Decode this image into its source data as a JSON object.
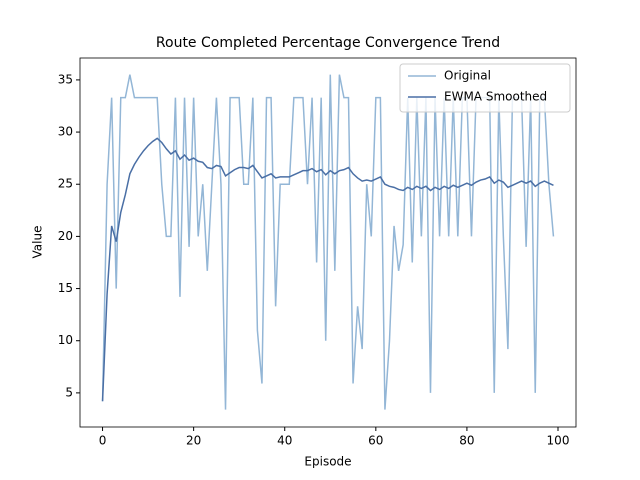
{
  "chart_data": {
    "type": "line",
    "title": "Route Completed Percentage Convergence Trend",
    "xlabel": "Episode",
    "ylabel": "Value",
    "x": [
      0,
      1,
      2,
      3,
      4,
      5,
      6,
      7,
      8,
      9,
      10,
      11,
      12,
      13,
      14,
      15,
      16,
      17,
      18,
      19,
      20,
      21,
      22,
      23,
      24,
      25,
      26,
      27,
      28,
      29,
      30,
      31,
      32,
      33,
      34,
      35,
      36,
      37,
      38,
      39,
      40,
      41,
      42,
      43,
      44,
      45,
      46,
      47,
      48,
      49,
      50,
      51,
      52,
      53,
      54,
      55,
      56,
      57,
      58,
      59,
      60,
      61,
      62,
      63,
      64,
      65,
      66,
      67,
      68,
      69,
      70,
      71,
      72,
      73,
      74,
      75,
      76,
      77,
      78,
      79,
      80,
      81,
      82,
      83,
      84,
      85,
      86,
      87,
      88,
      89,
      90,
      91,
      92,
      93,
      94,
      95,
      96,
      97,
      98,
      99
    ],
    "series": [
      {
        "name": "Original",
        "color": "#93b6d6",
        "values": [
          4.2,
          25,
          33.3,
          15,
          33.3,
          33.3,
          35.5,
          33.3,
          33.3,
          33.3,
          33.3,
          33.3,
          33.3,
          25,
          20,
          20,
          33.3,
          14.2,
          33.3,
          19,
          33.3,
          20,
          25,
          16.7,
          25,
          33.3,
          25,
          3.4,
          33.3,
          33.3,
          33.3,
          25,
          25,
          33.3,
          11,
          5.9,
          33.3,
          33.3,
          13.3,
          25,
          25,
          25,
          33.3,
          33.3,
          33.3,
          25,
          33.3,
          17.5,
          33.3,
          10,
          35.5,
          16.7,
          35.5,
          33.3,
          33.3,
          5.9,
          13.3,
          9.2,
          25,
          20,
          33.3,
          33.3,
          3.4,
          10,
          21,
          16.7,
          19.2,
          33.3,
          17.5,
          33.3,
          20,
          33.3,
          5,
          33.3,
          20,
          33.3,
          20,
          33.3,
          20,
          33.3,
          33.3,
          20,
          33.3,
          33.3,
          33.3,
          33.3,
          5,
          33.3,
          20,
          9.2,
          33.3,
          33.3,
          33.3,
          19,
          33.3,
          5,
          33.3,
          33.3,
          25,
          20
        ]
      },
      {
        "name": "EWMA Smoothed",
        "color": "#4a6fa5",
        "values": [
          4.2,
          14.5,
          21,
          19.5,
          22.3,
          24,
          26,
          26.9,
          27.6,
          28.2,
          28.7,
          29.1,
          29.4,
          29,
          28.4,
          27.9,
          28.2,
          27.4,
          27.8,
          27.3,
          27.5,
          27.2,
          27.1,
          26.6,
          26.5,
          26.8,
          26.7,
          25.8,
          26.1,
          26.4,
          26.6,
          26.6,
          26.5,
          26.8,
          26.2,
          25.6,
          25.8,
          26,
          25.6,
          25.7,
          25.7,
          25.7,
          25.9,
          26.1,
          26.3,
          26.3,
          26.5,
          26.2,
          26.4,
          25.9,
          26.3,
          26,
          26.3,
          26.4,
          26.6,
          26,
          25.6,
          25.3,
          25.4,
          25.3,
          25.5,
          25.7,
          25,
          24.8,
          24.7,
          24.5,
          24.4,
          24.7,
          24.5,
          24.8,
          24.6,
          24.8,
          24.4,
          24.7,
          24.5,
          24.8,
          24.6,
          24.9,
          24.7,
          24.9,
          25.1,
          24.9,
          25.2,
          25.4,
          25.5,
          25.7,
          25.1,
          25.4,
          25.2,
          24.7,
          24.9,
          25.1,
          25.3,
          25.1,
          25.3,
          24.8,
          25.1,
          25.3,
          25.1,
          24.9
        ]
      }
    ],
    "xlim": [
      -4.95,
      103.95
    ],
    "xticks": [
      0,
      20,
      40,
      60,
      80,
      100
    ],
    "ylim": [
      1.73,
      37.1
    ],
    "yticks": [
      5,
      10,
      15,
      20,
      25,
      30,
      35
    ],
    "legend": "upper right"
  }
}
